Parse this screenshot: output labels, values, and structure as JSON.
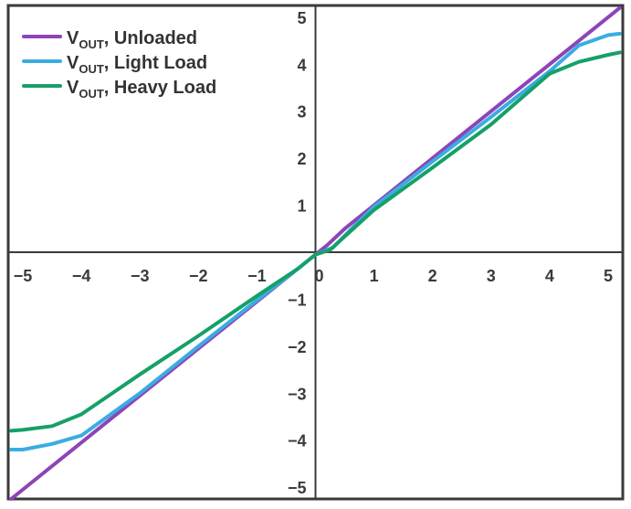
{
  "chart_data": {
    "type": "line",
    "title": "",
    "xlabel": "",
    "ylabel": "",
    "xlim": [
      -5.25,
      5.25
    ],
    "ylim": [
      -5.25,
      5.25
    ],
    "xticks": [
      -5,
      -4,
      -3,
      -2,
      -1,
      0,
      1,
      2,
      3,
      4,
      5
    ],
    "yticks": [
      -5,
      -4,
      -3,
      -2,
      -1,
      0,
      1,
      2,
      3,
      4,
      5
    ],
    "xtick_labels": [
      "−5",
      "−4",
      "−3",
      "−2",
      "−1",
      "0",
      "1",
      "2",
      "3",
      "4",
      "5"
    ],
    "ytick_labels": [
      "−5",
      "−4",
      "−3",
      "−2",
      "−1",
      "0",
      "1",
      "2",
      "3",
      "4",
      "5"
    ],
    "grid": false,
    "legend_position": "top-left",
    "series": [
      {
        "name": "V",
        "name_sub": "OUT",
        "name_suffix": ", Unloaded",
        "color": "#8e44b8",
        "x": [
          -5.2,
          -4.0,
          -3.0,
          -2.0,
          -1.0,
          -0.3,
          0.0,
          0.2,
          0.5,
          1.0,
          2.0,
          3.0,
          4.0,
          5.2
        ],
        "y": [
          -5.25,
          -4.05,
          -3.05,
          -2.05,
          -1.05,
          -0.35,
          -0.05,
          0.15,
          0.5,
          1.0,
          2.0,
          3.0,
          4.0,
          5.2
        ]
      },
      {
        "name": "V",
        "name_sub": "OUT",
        "name_suffix": ", Light Load",
        "color": "#3aace3",
        "x": [
          -5.2,
          -5.0,
          -4.5,
          -4.0,
          -3.0,
          -2.0,
          -1.0,
          -0.3,
          0.0,
          0.3,
          0.6,
          1.0,
          2.0,
          3.0,
          4.0,
          4.5,
          5.0,
          5.2
        ],
        "y": [
          -4.2,
          -4.2,
          -4.08,
          -3.9,
          -3.0,
          -2.0,
          -1.02,
          -0.35,
          -0.05,
          0.1,
          0.48,
          0.97,
          1.93,
          2.88,
          3.85,
          4.4,
          4.62,
          4.65
        ]
      },
      {
        "name": "V",
        "name_sub": "OUT",
        "name_suffix": ", Heavy Load",
        "color": "#15a067",
        "x": [
          -5.2,
          -5.0,
          -4.5,
          -4.0,
          -3.0,
          -2.0,
          -1.0,
          -0.3,
          0.0,
          0.25,
          0.6,
          1.0,
          2.0,
          3.0,
          4.0,
          4.5,
          5.0,
          5.2
        ],
        "y": [
          -3.8,
          -3.78,
          -3.7,
          -3.45,
          -2.6,
          -1.78,
          -0.93,
          -0.35,
          -0.05,
          0.05,
          0.45,
          0.9,
          1.8,
          2.72,
          3.8,
          4.05,
          4.2,
          4.25
        ]
      }
    ]
  }
}
